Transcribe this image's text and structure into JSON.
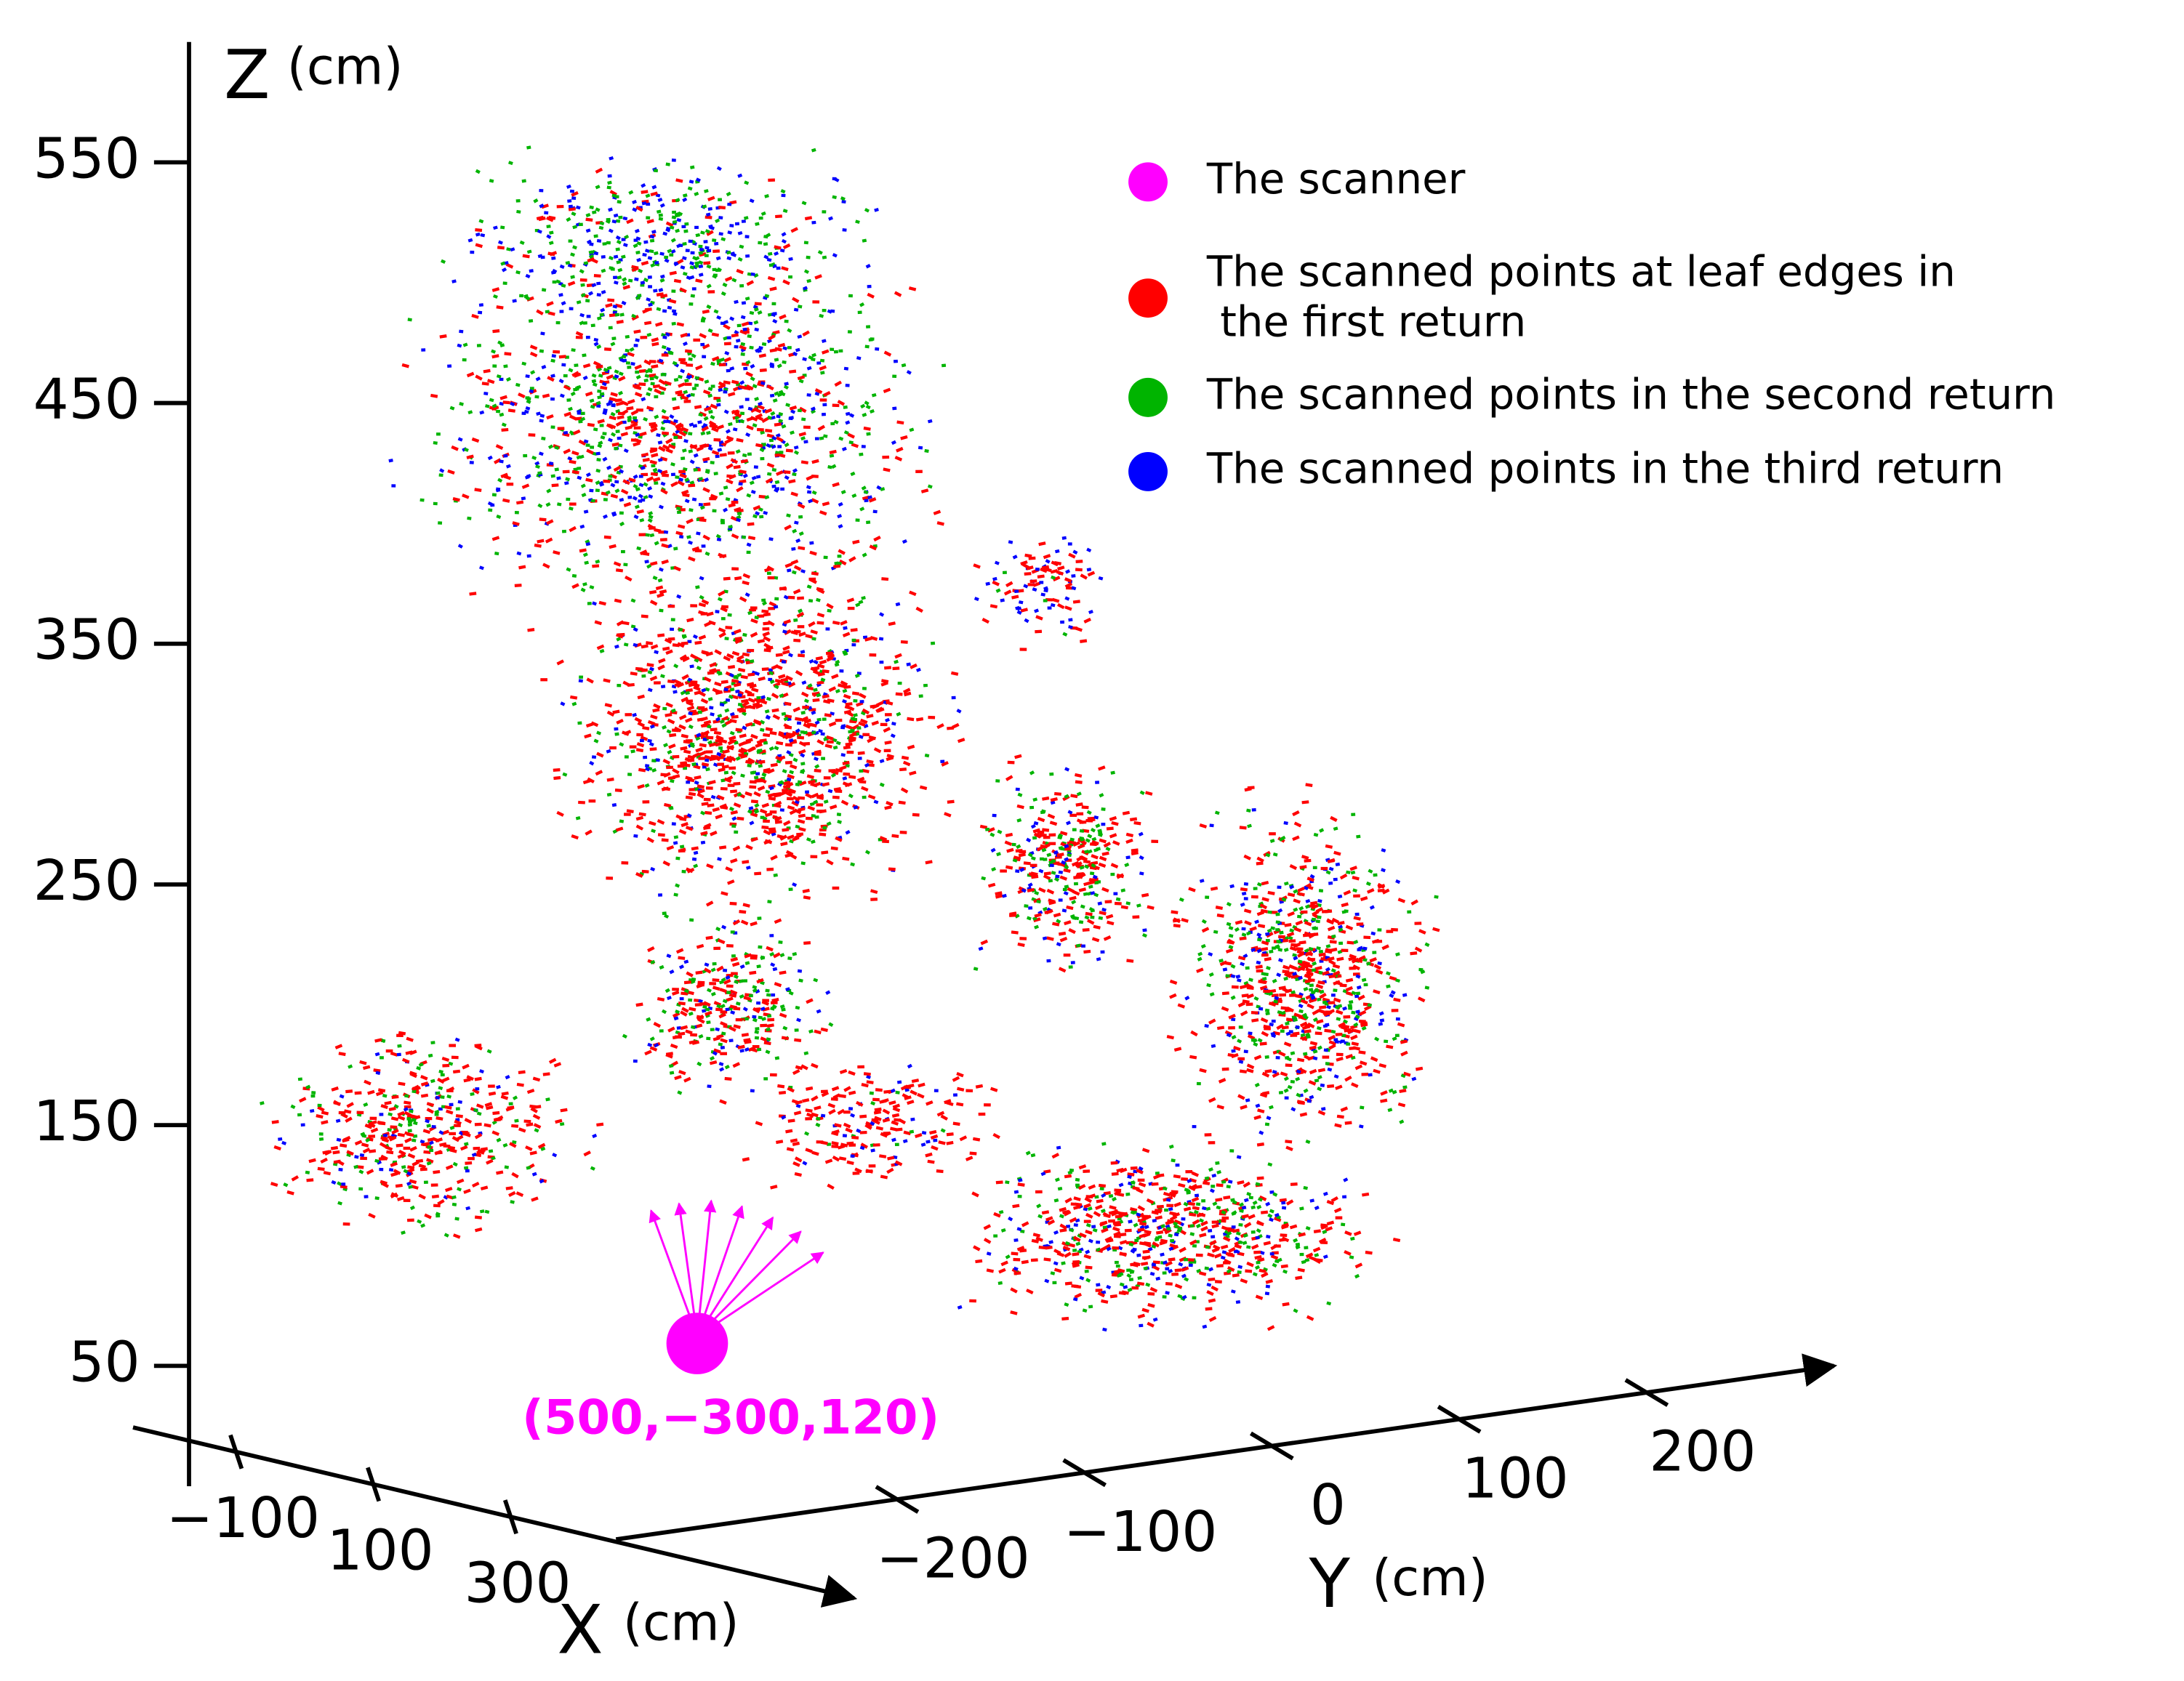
{
  "chart_data": {
    "type": "scatter3d",
    "zlabel": "Z",
    "zunit": "(cm)",
    "xlabel": "X",
    "xunit": "(cm)",
    "ylabel": "Y",
    "yunit": "(cm)",
    "zlim": [
      0,
      600
    ],
    "zticks": [
      50,
      150,
      250,
      350,
      450,
      550
    ],
    "xlim": [
      -250,
      800
    ],
    "xticks": [
      -100,
      100,
      300
    ],
    "ylim": [
      -350,
      300
    ],
    "yticks": [
      -200,
      -100,
      0,
      100,
      200
    ],
    "annotation": "(500,−300,120)",
    "series": [
      {
        "name": "The scanner",
        "color": "#ff00ff"
      },
      {
        "name": "The scanned points at leaf edges in\n the first return",
        "color": "#ff0000"
      },
      {
        "name": "The scanned points in the second return",
        "color": "#00b400"
      },
      {
        "name": "The scanned points in the third return",
        "color": "#0000ff"
      }
    ]
  }
}
